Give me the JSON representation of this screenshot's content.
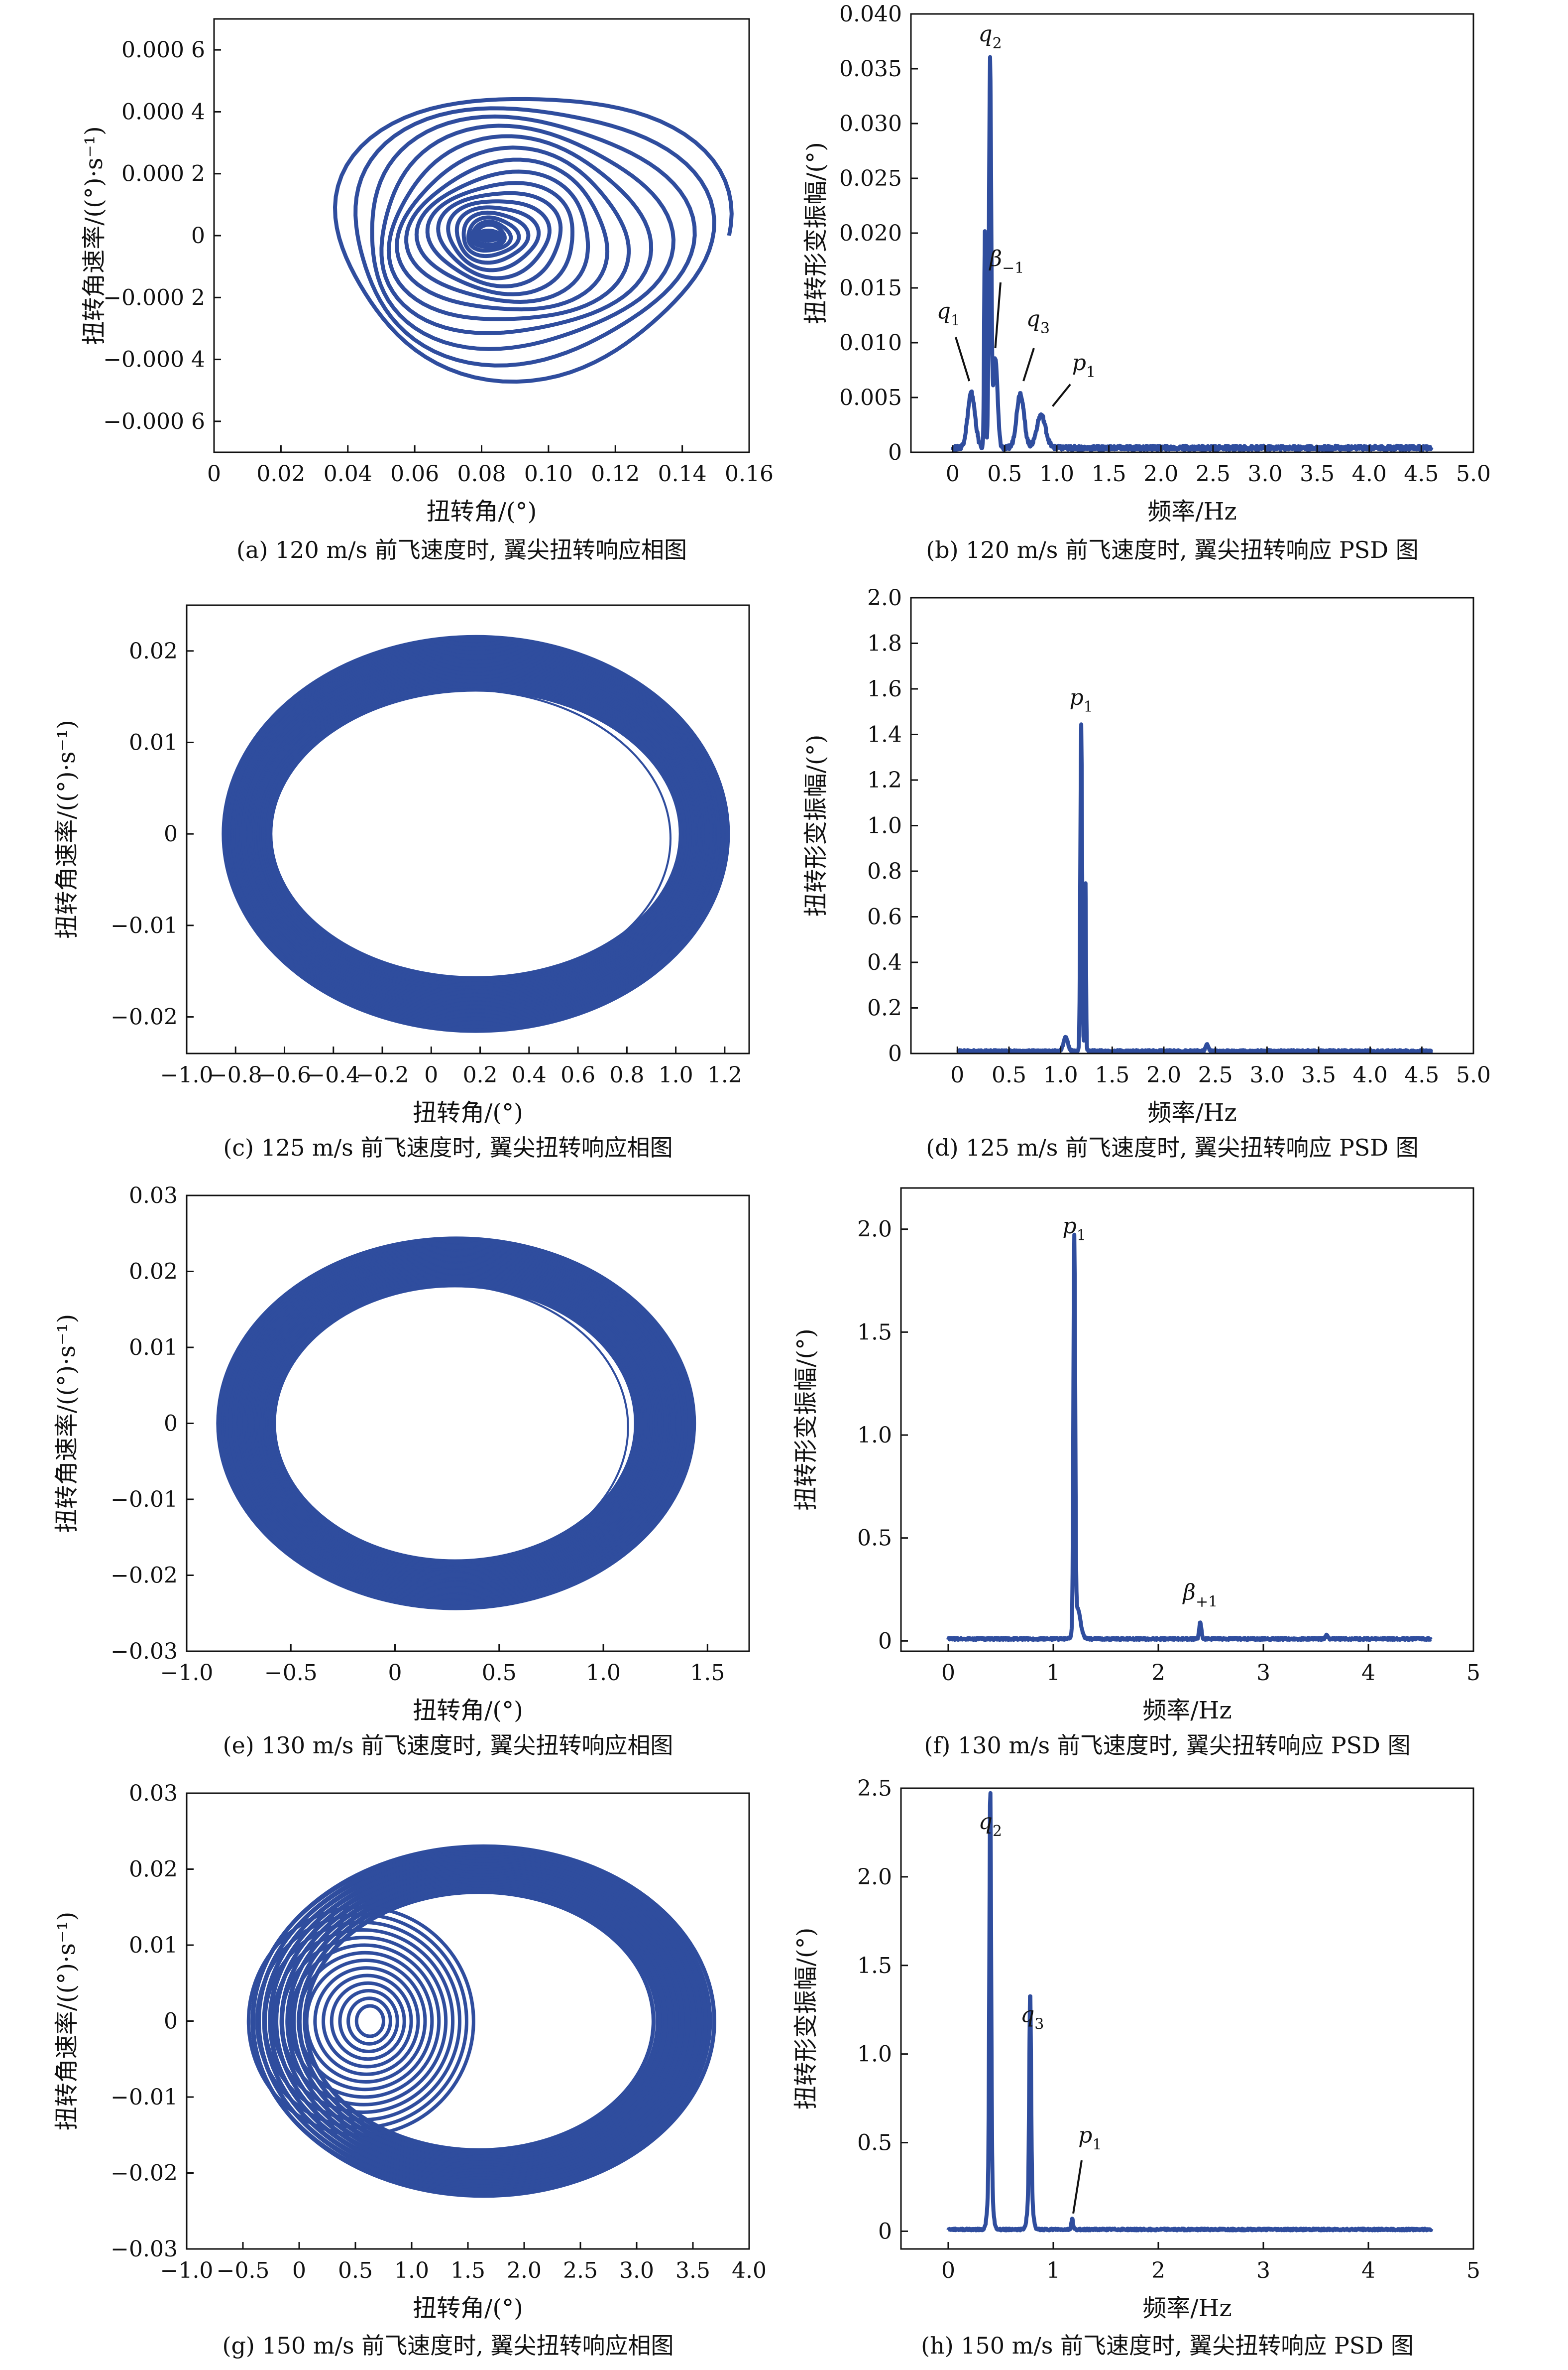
{
  "colors": {
    "series": "#2f4d9e",
    "axis": "#111111",
    "background": "#ffffff"
  },
  "chart_data": [
    {
      "id": "a",
      "type": "scatter",
      "mode": "phase-portrait",
      "caption": "(a) 120 m/s 前飞速度时, 翼尖扭转响应相图",
      "xlabel": "扭转角/(°)",
      "ylabel": "扭转角速率/((°)·s⁻¹)",
      "xlim": [
        0,
        0.16
      ],
      "ylim": [
        -0.0007,
        0.0007
      ],
      "xticks": [
        0,
        0.02,
        0.04,
        0.06,
        0.08,
        0.1,
        0.12,
        0.14,
        0.16
      ],
      "xtick_labels": [
        "0",
        "0.02",
        "0.04",
        "0.06",
        "0.08",
        "0.10",
        "0.12",
        "0.14",
        "0.16"
      ],
      "yticks": [
        0.0006,
        0.0004,
        0.0002,
        0,
        -0.0002,
        -0.0004,
        -0.0006
      ],
      "ytick_labels": [
        "0.000 6",
        "0.000 4",
        "0.000 2",
        "0",
        "−0.000 2",
        "−0.000 4",
        "−0.000 6"
      ],
      "center": [
        0.082,
        0
      ],
      "orbits": {
        "type": "spiral-decay",
        "rx": [
          0.06,
          0.004
        ],
        "ry": [
          0.00048,
          3e-05
        ]
      }
    },
    {
      "id": "b",
      "type": "line",
      "mode": "psd",
      "caption": "(b) 120 m/s 前飞速度时, 翼尖扭转响应 PSD 图",
      "xlabel": "频率/Hz",
      "ylabel": "扭转形变振幅/(°)",
      "xlim": [
        -0.4,
        5.0
      ],
      "ylim": [
        0,
        0.04
      ],
      "xticks": [
        0,
        0.5,
        1.0,
        1.5,
        2.0,
        2.5,
        3.0,
        3.5,
        4.0,
        4.5,
        5.0
      ],
      "xtick_labels": [
        "0",
        "0.5",
        "1.0",
        "1.5",
        "2.0",
        "2.5",
        "3.0",
        "3.5",
        "4.0",
        "4.5",
        "5.0"
      ],
      "yticks": [
        0,
        0.005,
        0.01,
        0.015,
        0.02,
        0.025,
        0.03,
        0.035,
        0.04
      ],
      "ytick_labels": [
        "0",
        "0.005",
        "0.010",
        "0.015",
        "0.020",
        "0.025",
        "0.030",
        "0.035",
        "0.040"
      ],
      "baseline": 0.0004,
      "x_end": 4.6,
      "peaks": [
        {
          "x": 0.18,
          "y": 0.005,
          "w": 0.05
        },
        {
          "x": 0.36,
          "y": 0.035,
          "w": 0.015
        },
        {
          "x": 0.31,
          "y": 0.02,
          "w": 0.01
        },
        {
          "x": 0.41,
          "y": 0.0082,
          "w": 0.03
        },
        {
          "x": 0.65,
          "y": 0.005,
          "w": 0.05
        },
        {
          "x": 0.85,
          "y": 0.003,
          "w": 0.06
        }
      ],
      "annotations": [
        {
          "text": "q",
          "sub": "2",
          "x": 0.36,
          "y": 0.0375
        },
        {
          "text": "β",
          "sub": "−1",
          "x": 0.52,
          "y": 0.017,
          "line": [
            [
              0.46,
              0.0155
            ],
            [
              0.41,
              0.0095
            ]
          ]
        },
        {
          "text": "q",
          "sub": "1",
          "x": -0.04,
          "y": 0.0122,
          "line": [
            [
              0.03,
              0.0105
            ],
            [
              0.16,
              0.0065
            ]
          ]
        },
        {
          "text": "q",
          "sub": "3",
          "x": 0.82,
          "y": 0.0115,
          "line": [
            [
              0.78,
              0.0095
            ],
            [
              0.68,
              0.0065
            ]
          ]
        },
        {
          "text": "p",
          "sub": "1",
          "x": 1.26,
          "y": 0.0075,
          "line": [
            [
              1.13,
              0.0062
            ],
            [
              0.96,
              0.0042
            ]
          ]
        }
      ]
    },
    {
      "id": "c",
      "type": "scatter",
      "mode": "phase-portrait",
      "caption": "(c) 125 m/s 前飞速度时, 翼尖扭转响应相图",
      "xlabel": "扭转角/(°)",
      "ylabel": "扭转角速率/((°)·s⁻¹)",
      "xlim": [
        -1.0,
        1.3
      ],
      "ylim": [
        -0.024,
        0.025
      ],
      "xticks": [
        -1.0,
        -0.8,
        -0.6,
        -0.4,
        -0.2,
        0,
        0.2,
        0.4,
        0.6,
        0.8,
        1.0,
        1.2
      ],
      "xtick_labels": [
        "−1.0",
        "−0.8",
        "−0.6",
        "−0.4",
        "−0.2",
        "0",
        "0.2",
        "0.4",
        "0.6",
        "0.8",
        "1.0",
        "1.2"
      ],
      "yticks": [
        0.02,
        0.01,
        0,
        -0.01,
        -0.02
      ],
      "ytick_labels": [
        "0.02",
        "0.01",
        "0",
        "−0.01",
        "−0.02"
      ],
      "center": [
        0.18,
        0
      ],
      "orbits": {
        "type": "band",
        "rx": [
          1.03,
          0.84
        ],
        "ry": [
          0.0215,
          0.0158
        ]
      }
    },
    {
      "id": "d",
      "type": "line",
      "mode": "psd",
      "caption": "(d) 125 m/s 前飞速度时, 翼尖扭转响应 PSD 图",
      "xlabel": "频率/Hz",
      "ylabel": "扭转形变振幅/(°)",
      "xlim": [
        -0.45,
        5.0
      ],
      "ylim": [
        0,
        2.0
      ],
      "xticks": [
        0,
        0.5,
        1.0,
        1.5,
        2.0,
        2.5,
        3.0,
        3.5,
        4.0,
        4.5,
        5.0
      ],
      "xtick_labels": [
        "0",
        "0.5",
        "1.0",
        "1.5",
        "2.0",
        "2.5",
        "3.0",
        "3.5",
        "4.0",
        "4.5",
        "5.0"
      ],
      "yticks": [
        0,
        0.2,
        0.4,
        0.6,
        0.8,
        1.0,
        1.2,
        1.4,
        1.6,
        1.8,
        2.0
      ],
      "ytick_labels": [
        "0",
        "0.2",
        "0.4",
        "0.6",
        "0.8",
        "1.0",
        "1.2",
        "1.4",
        "1.6",
        "1.8",
        "2.0"
      ],
      "baseline": 0.01,
      "x_end": 4.6,
      "peaks": [
        {
          "x": 1.2,
          "y": 1.43,
          "w": 0.012
        },
        {
          "x": 1.24,
          "y": 0.78,
          "w": 0.008
        },
        {
          "x": 1.05,
          "y": 0.06,
          "w": 0.03
        },
        {
          "x": 2.42,
          "y": 0.03,
          "w": 0.02
        }
      ],
      "annotations": [
        {
          "text": "p",
          "sub": "1",
          "x": 1.2,
          "y": 1.53
        }
      ]
    },
    {
      "id": "e",
      "type": "scatter",
      "mode": "phase-portrait",
      "caption": "(e) 130 m/s 前飞速度时, 翼尖扭转响应相图",
      "xlabel": "扭转角/(°)",
      "ylabel": "扭转角速率/((°)·s⁻¹)",
      "xlim": [
        -1.0,
        1.7
      ],
      "ylim": [
        -0.03,
        0.03
      ],
      "xticks": [
        -1.0,
        -0.5,
        0,
        0.5,
        1.0,
        1.5
      ],
      "xtick_labels": [
        "−1.0",
        "−0.5",
        "0",
        "0.5",
        "1.0",
        "1.5"
      ],
      "yticks": [
        0.03,
        0.02,
        0.01,
        0,
        -0.01,
        -0.02,
        -0.03
      ],
      "ytick_labels": [
        "0.03",
        "0.02",
        "0.01",
        "0",
        "−0.01",
        "−0.02",
        "−0.03"
      ],
      "center": [
        0.29,
        0
      ],
      "orbits": {
        "type": "band",
        "rx": [
          1.14,
          0.87
        ],
        "ry": [
          0.0243,
          0.0182
        ]
      }
    },
    {
      "id": "f",
      "type": "line",
      "mode": "psd",
      "caption": "(f) 130 m/s 前飞速度时, 翼尖扭转响应 PSD 图",
      "xlabel": "频率/Hz",
      "ylabel": "扭转形变振幅/(°)",
      "xlim": [
        -0.45,
        5.0
      ],
      "ylim": [
        -0.05,
        2.2
      ],
      "xticks": [
        0,
        1,
        2,
        3,
        4,
        5
      ],
      "xtick_labels": [
        "0",
        "1",
        "2",
        "3",
        "4",
        "5"
      ],
      "yticks": [
        0,
        0.5,
        1.0,
        1.5,
        2.0
      ],
      "ytick_labels": [
        "0",
        "0.5",
        "1.0",
        "1.5",
        "2.0"
      ],
      "baseline": 0.01,
      "x_end": 4.6,
      "peaks": [
        {
          "x": 1.2,
          "y": 1.88,
          "w": 0.012
        },
        {
          "x": 1.23,
          "y": 0.15,
          "w": 0.04
        },
        {
          "x": 2.4,
          "y": 0.08,
          "w": 0.015
        },
        {
          "x": 3.6,
          "y": 0.02,
          "w": 0.015
        }
      ],
      "annotations": [
        {
          "text": "p",
          "sub": "1",
          "x": 1.2,
          "y": 1.98
        },
        {
          "text": "β",
          "sub": "+1",
          "x": 2.4,
          "y": 0.2
        }
      ]
    },
    {
      "id": "g",
      "type": "scatter",
      "mode": "phase-portrait",
      "caption": "(g) 150 m/s 前飞速度时, 翼尖扭转响应相图",
      "xlabel": "扭转角/(°)",
      "ylabel": "扭转角速率/((°)·s⁻¹)",
      "xlim": [
        -1.0,
        4.0
      ],
      "ylim": [
        -0.03,
        0.03
      ],
      "xticks": [
        -1.0,
        -0.5,
        0,
        0.5,
        1.0,
        1.5,
        2.0,
        2.5,
        3.0,
        3.5,
        4.0
      ],
      "xtick_labels": [
        "−1.0",
        "−0.5",
        "0",
        "0.5",
        "1.0",
        "1.5",
        "2.0",
        "2.5",
        "3.0",
        "3.5",
        "4.0"
      ],
      "yticks": [
        0.03,
        0.02,
        0.01,
        0,
        -0.01,
        -0.02,
        -0.03
      ],
      "ytick_labels": [
        "0.03",
        "0.02",
        "0.01",
        "0",
        "−0.01",
        "−0.02",
        "−0.03"
      ],
      "orbits": {
        "type": "two-regime",
        "outer": {
          "center": [
            1.6,
            0
          ],
          "rx": [
            2.05,
            1.55
          ],
          "ry": [
            0.023,
            0.017
          ]
        },
        "inner": {
          "center": [
            0.55,
            0
          ],
          "rx": [
            1.0,
            0.12
          ],
          "ry": [
            0.015,
            0.002
          ]
        }
      }
    },
    {
      "id": "h",
      "type": "line",
      "mode": "psd",
      "caption": "(h) 150 m/s 前飞速度时, 翼尖扭转响应 PSD 图",
      "xlabel": "频率/Hz",
      "ylabel": "扭转形变振幅/(°)",
      "xlim": [
        -0.45,
        5.0
      ],
      "ylim": [
        -0.1,
        2.5
      ],
      "xticks": [
        0,
        1,
        2,
        3,
        4,
        5
      ],
      "xtick_labels": [
        "0",
        "1",
        "2",
        "3",
        "4",
        "5"
      ],
      "yticks": [
        0,
        0.5,
        1.0,
        1.5,
        2.0,
        2.5
      ],
      "ytick_labels": [
        "0",
        "0.5",
        "1.0",
        "1.5",
        "2.0",
        "2.5"
      ],
      "baseline": 0.01,
      "x_end": 4.6,
      "peaks": [
        {
          "x": 0.4,
          "y": 2.2,
          "w": 0.012
        },
        {
          "x": 0.4,
          "y": 0.3,
          "w": 0.03
        },
        {
          "x": 0.78,
          "y": 1.1,
          "w": 0.012
        },
        {
          "x": 0.78,
          "y": 0.25,
          "w": 0.03
        },
        {
          "x": 1.18,
          "y": 0.06,
          "w": 0.012
        }
      ],
      "annotations": [
        {
          "text": "q",
          "sub": "2",
          "x": 0.4,
          "y": 2.27
        },
        {
          "text": "q",
          "sub": "3",
          "x": 0.8,
          "y": 1.18
        },
        {
          "text": "p",
          "sub": "1",
          "x": 1.35,
          "y": 0.5,
          "line": [
            [
              1.27,
              0.4
            ],
            [
              1.19,
              0.1
            ]
          ]
        }
      ]
    }
  ]
}
